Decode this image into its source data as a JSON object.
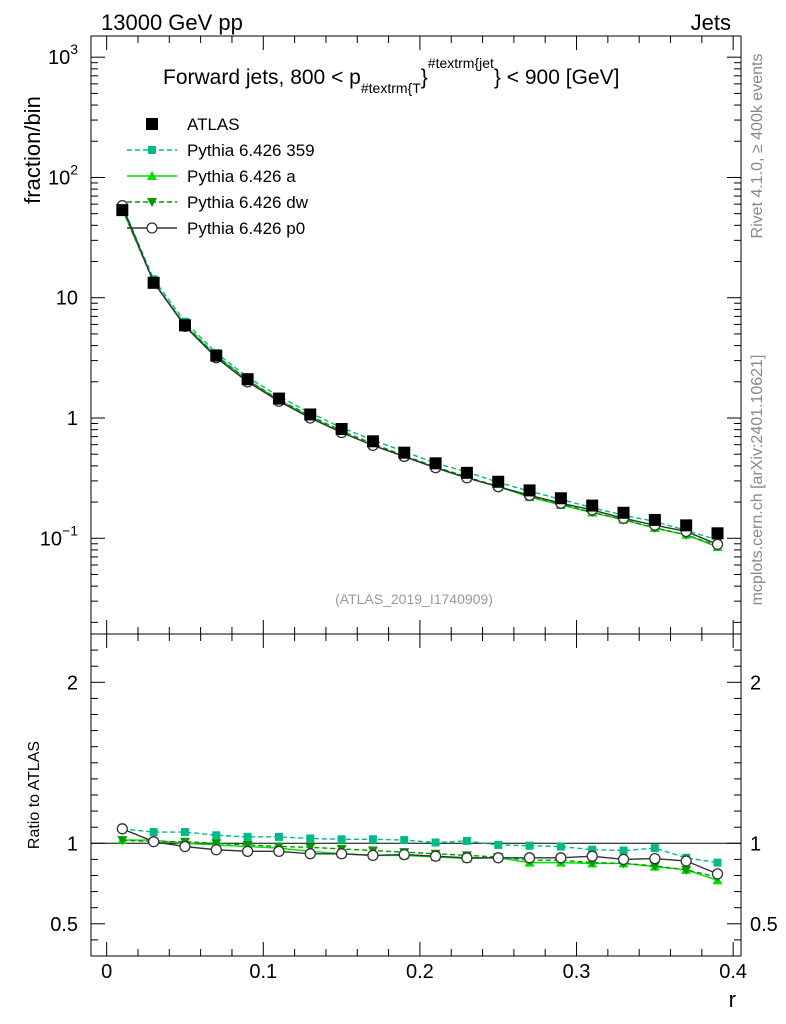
{
  "header": {
    "left": "13000 GeV pp",
    "right": "Jets"
  },
  "side_labels": {
    "rivet": "Rivet 4.1.0, ≥ 400k events",
    "mcplots": "mcplots.cern.ch [arXiv:2401.10621]"
  },
  "chart_data": {
    "type": "line",
    "title": {
      "main": "Forward jets, 800 < p",
      "sub": "#textrm{T",
      "sup": "#textrm{jet",
      "tail": "< 900 [GeV]"
    },
    "analysis_id": "(ATLAS_2019_I1740909)",
    "xlabel": "r",
    "ylabel_main": "fraction/bin",
    "ylabel_ratio": "Ratio to ATLAS",
    "xlim": [
      -0.01,
      0.405
    ],
    "ylim_main": [
      0.016,
      1500
    ],
    "ylim_ratio": [
      0.3,
      2.3
    ],
    "yscale_main": "log",
    "x_ticks": [
      {
        "v": 0,
        "label": "0"
      },
      {
        "v": 0.1,
        "label": "0.1"
      },
      {
        "v": 0.2,
        "label": "0.2"
      },
      {
        "v": 0.3,
        "label": "0.3"
      },
      {
        "v": 0.4,
        "label": "0.4"
      }
    ],
    "y_ticks_main": [
      {
        "v": 1000,
        "base": "10",
        "exp": "3"
      },
      {
        "v": 100,
        "base": "10",
        "exp": "2"
      },
      {
        "v": 10,
        "base": "10",
        "exp": ""
      },
      {
        "v": 1,
        "base": "1",
        "exp": ""
      },
      {
        "v": 0.1,
        "base": "10",
        "exp": "−1"
      }
    ],
    "y_ticks_ratio": [
      {
        "v": 2,
        "label": "2"
      },
      {
        "v": 1,
        "label": "1"
      },
      {
        "v": 0.5,
        "label": "0.5"
      }
    ],
    "x": [
      0.01,
      0.03,
      0.05,
      0.07,
      0.09,
      0.11,
      0.13,
      0.15,
      0.17,
      0.19,
      0.21,
      0.23,
      0.25,
      0.27,
      0.29,
      0.31,
      0.33,
      0.35,
      0.37,
      0.39
    ],
    "series": [
      {
        "name": "ATLAS",
        "kind": "data",
        "color": "#000000",
        "marker": "square",
        "values": [
          53.5,
          13.3,
          5.9,
          3.3,
          2.1,
          1.45,
          1.07,
          0.81,
          0.64,
          0.515,
          0.42,
          0.35,
          0.295,
          0.25,
          0.215,
          0.187,
          0.163,
          0.142,
          0.128,
          0.11
        ]
      },
      {
        "name": "Pythia 6.426 359",
        "kind": "mc",
        "color": "#00bb88",
        "dash": "5,3",
        "marker": "smallsquare",
        "ratio": [
          1.09,
          1.07,
          1.07,
          1.05,
          1.04,
          1.04,
          1.03,
          1.025,
          1.025,
          1.02,
          1.005,
          1.015,
          0.99,
          0.985,
          0.98,
          0.96,
          0.955,
          0.97,
          0.91,
          0.88
        ]
      },
      {
        "name": "Pythia 6.426 a",
        "kind": "mc",
        "color": "#00dd00",
        "dash": "",
        "marker": "triangle-up",
        "ratio": [
          1.02,
          1.02,
          1.0,
          0.99,
          0.98,
          0.97,
          0.95,
          0.935,
          0.925,
          0.925,
          0.915,
          0.905,
          0.91,
          0.88,
          0.88,
          0.875,
          0.875,
          0.855,
          0.835,
          0.77
        ]
      },
      {
        "name": "Pythia 6.426 dw",
        "kind": "mc",
        "color": "#009900",
        "dash": "5,3",
        "marker": "triangle-down",
        "ratio": [
          1.02,
          1.01,
          1.01,
          1.0,
          0.99,
          0.98,
          0.975,
          0.965,
          0.955,
          0.945,
          0.935,
          0.925,
          0.915,
          0.895,
          0.895,
          0.88,
          0.875,
          0.86,
          0.835,
          0.79
        ]
      },
      {
        "name": "Pythia 6.426 p0",
        "kind": "mc",
        "color": "#333333",
        "dash": "",
        "marker": "circle-open",
        "ratio": [
          1.09,
          1.01,
          0.98,
          0.96,
          0.95,
          0.95,
          0.935,
          0.935,
          0.925,
          0.93,
          0.92,
          0.91,
          0.91,
          0.91,
          0.91,
          0.92,
          0.9,
          0.905,
          0.89,
          0.81
        ]
      }
    ]
  }
}
